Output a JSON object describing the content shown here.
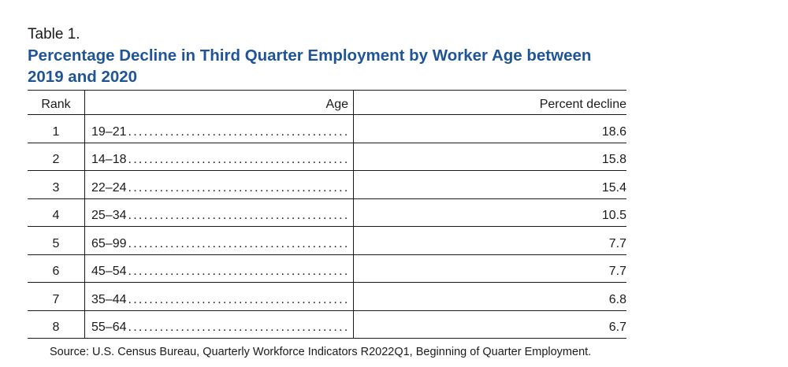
{
  "table_label": "Table 1.",
  "title": "Percentage Decline in Third Quarter Employment by Worker Age between 2019 and 2020",
  "columns": {
    "rank": "Rank",
    "age": "Age",
    "percent": "Percent decline"
  },
  "rows": [
    {
      "rank": "1",
      "age": "19–21",
      "percent": "18.6"
    },
    {
      "rank": "2",
      "age": "14–18",
      "percent": "15.8"
    },
    {
      "rank": "3",
      "age": "22–24",
      "percent": "15.4"
    },
    {
      "rank": "4",
      "age": "25–34",
      "percent": "10.5"
    },
    {
      "rank": "5",
      "age": "65–99",
      "percent": "7.7"
    },
    {
      "rank": "6",
      "age": "45–54",
      "percent": "7.7"
    },
    {
      "rank": "7",
      "age": "35–44",
      "percent": "6.8"
    },
    {
      "rank": "8",
      "age": "55–64",
      "percent": "6.7"
    }
  ],
  "source": "Source: U.S. Census Bureau, Quarterly Workforce Indicators R2022Q1, Beginning of Quarter Employment.",
  "colors": {
    "title": "#1f5596",
    "text": "#1a1a1a"
  }
}
